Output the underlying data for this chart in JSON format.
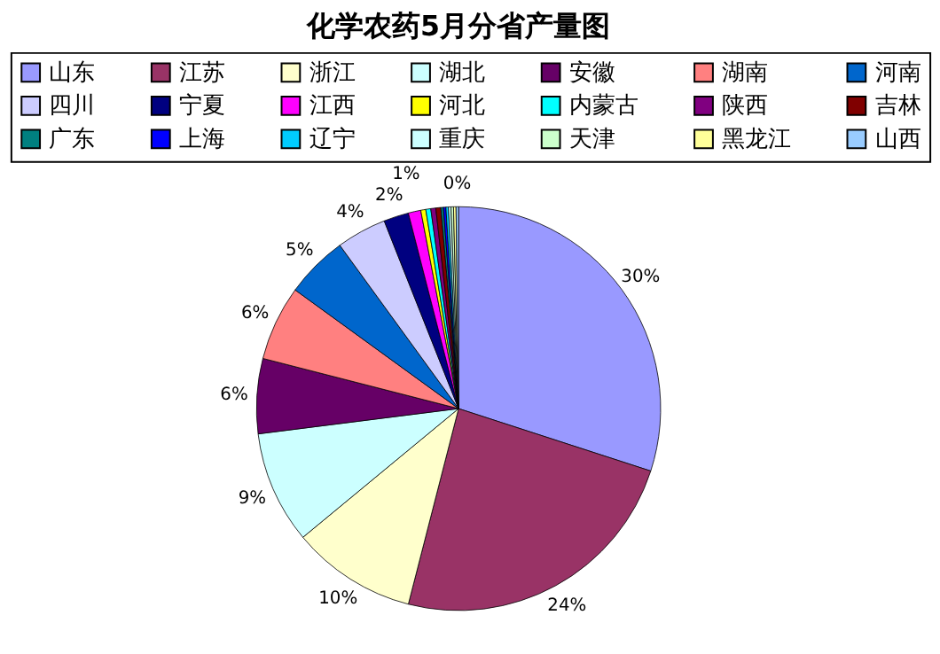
{
  "chart_data": {
    "type": "pie",
    "title": "化学农药5月分省产量图",
    "categories": [
      "山东",
      "江苏",
      "浙江",
      "湖北",
      "安徽",
      "湖南",
      "河南",
      "四川",
      "宁夏",
      "江西",
      "河北",
      "内蒙古",
      "陕西",
      "吉林",
      "广东",
      "上海",
      "辽宁",
      "重庆",
      "天津",
      "黑龙江",
      "山西"
    ],
    "values": [
      30,
      24,
      10,
      9,
      6,
      6,
      5,
      4,
      2,
      1,
      0.4,
      0.4,
      0.4,
      0.4,
      0.2,
      0.2,
      0.2,
      0.2,
      0.2,
      0.2,
      0.2
    ],
    "colors": [
      "#9999ff",
      "#993366",
      "#ffffcc",
      "#ccffff",
      "#660066",
      "#ff8080",
      "#0066cc",
      "#ccccff",
      "#000080",
      "#ff00ff",
      "#ffff00",
      "#00ffff",
      "#800080",
      "#800000",
      "#008080",
      "#0000ff",
      "#00ccff",
      "#ccffff",
      "#ccffcc",
      "#ffff99",
      "#99ccff"
    ],
    "value_labels": [
      "30%",
      "24%",
      "10%",
      "9%",
      "6%",
      "6%",
      "5%",
      "4%",
      "2%",
      "1%",
      null,
      null,
      null,
      null,
      null,
      null,
      null,
      null,
      null,
      null,
      "0%"
    ],
    "legend": "top"
  }
}
